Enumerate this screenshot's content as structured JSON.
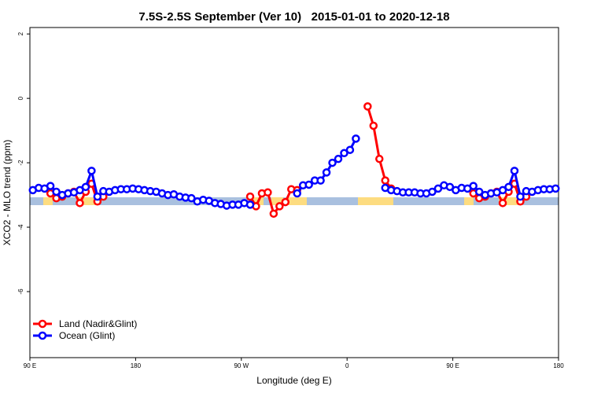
{
  "chart_data": {
    "type": "line",
    "title": "7.5S-2.5S September (Ver 10)   2015-01-01 to 2020-12-18",
    "x_label": "Longitude (deg E)",
    "y_label": "XCO2 - MLO trend (ppm)",
    "x": [
      92.5,
      97.5,
      102.5,
      107.5,
      112.5,
      117.5,
      122.5,
      127.5,
      132.5,
      137.5,
      142.5,
      147.5,
      152.5,
      157.5,
      162.5,
      167.5,
      172.5,
      177.5,
      182.5,
      187.5,
      192.5,
      197.5,
      202.5,
      207.5,
      212.5,
      217.5,
      222.5,
      227.5,
      232.5,
      237.5,
      242.5,
      247.5,
      252.5,
      257.5,
      262.5,
      267.5,
      272.5,
      277.5,
      282.5,
      287.5,
      292.5,
      297.5,
      302.5,
      307.5,
      312.5,
      317.5,
      322.5,
      327.5,
      332.5,
      337.5,
      342.5,
      347.5,
      352.5,
      357.5,
      362.5,
      367.5,
      372.5,
      377.5,
      382.5,
      387.5,
      392.5,
      397.5,
      402.5,
      407.5,
      412.5,
      417.5,
      422.5,
      427.5,
      432.5,
      437.5,
      442.5,
      447.5,
      452.5,
      457.5,
      462.5,
      467.5,
      472.5,
      477.5,
      482.5,
      487.5,
      492.5,
      497.5,
      502.5,
      507.5,
      512.5,
      517.5,
      522.5,
      527.5,
      532.5,
      537.5
    ],
    "series": [
      {
        "name": "Land (Nadir&Glint)",
        "color": "#ff0000",
        "values": [
          null,
          null,
          null,
          -2.95,
          -3.1,
          -3.05,
          -2.95,
          -2.9,
          -3.25,
          -2.9,
          -2.65,
          -3.2,
          -3.05,
          null,
          null,
          null,
          null,
          null,
          null,
          null,
          null,
          null,
          null,
          null,
          null,
          null,
          null,
          null,
          null,
          null,
          null,
          null,
          null,
          null,
          null,
          null,
          null,
          -3.05,
          -3.35,
          -2.95,
          -2.92,
          -3.58,
          -3.35,
          -3.22,
          -2.82,
          -2.85,
          null,
          null,
          null,
          null,
          null,
          null,
          null,
          null,
          null,
          null,
          null,
          -0.25,
          -0.85,
          -1.88,
          -2.55,
          -2.8,
          null,
          null,
          null,
          null,
          null,
          null,
          null,
          null,
          null,
          null,
          null,
          null,
          null,
          -2.95,
          -3.1,
          -3.05,
          -2.95,
          -2.9,
          -3.25,
          -2.9,
          -2.65,
          -3.2,
          -3.05,
          null,
          null,
          null,
          null,
          null
        ]
      },
      {
        "name": "Ocean (Glint)",
        "color": "#0000ff",
        "values": [
          -2.85,
          -2.78,
          -2.8,
          -2.72,
          -2.9,
          -3.0,
          -2.95,
          -2.92,
          -2.85,
          -2.75,
          -2.25,
          -3.05,
          -2.88,
          -2.9,
          -2.85,
          -2.82,
          -2.82,
          -2.8,
          -2.82,
          -2.85,
          -2.88,
          -2.9,
          -2.95,
          -3.0,
          -2.98,
          -3.05,
          -3.08,
          -3.1,
          -3.2,
          -3.15,
          -3.18,
          -3.25,
          -3.28,
          -3.33,
          -3.3,
          -3.3,
          -3.25,
          -3.3,
          null,
          null,
          null,
          null,
          null,
          null,
          null,
          -2.95,
          -2.7,
          -2.68,
          -2.55,
          -2.55,
          -2.3,
          -2.0,
          -1.88,
          -1.7,
          -1.6,
          -1.25,
          null,
          null,
          null,
          null,
          -2.78,
          -2.85,
          -2.88,
          -2.92,
          -2.92,
          -2.92,
          -2.95,
          -2.95,
          -2.9,
          -2.8,
          -2.7,
          -2.75,
          -2.85,
          -2.78,
          -2.8,
          -2.72,
          -2.9,
          -3.0,
          -2.95,
          -2.92,
          -2.85,
          -2.75,
          -2.25,
          -3.05,
          -2.88,
          -2.9,
          -2.85,
          -2.82,
          -2.82,
          -2.8
        ]
      }
    ],
    "xlim": [
      90,
      540
    ],
    "xticks": [
      {
        "value": 90,
        "label": "90 E"
      },
      180,
      {
        "value": 270,
        "label": "90 W"
      },
      {
        "value": 360,
        "label": "0"
      },
      {
        "value": 450,
        "label": "90 E"
      },
      {
        "value": 540,
        "label": "180"
      }
    ],
    "ylim": [
      -8.05,
      2.2
    ],
    "yticks": [
      2,
      0,
      -2,
      -4,
      -6
    ],
    "legend": "bottom-left",
    "grid": false
  }
}
